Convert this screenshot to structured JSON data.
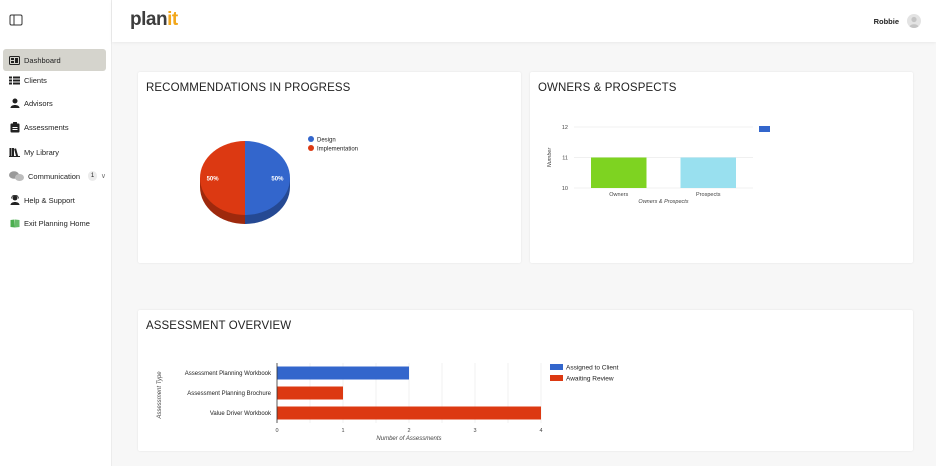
{
  "header": {
    "logo_main": "plan",
    "logo_accent": "it",
    "user_name": "Robbie"
  },
  "sidebar": {
    "items": [
      {
        "label": "Dashboard",
        "icon": "dashboard-icon",
        "active": true
      },
      {
        "label": "Clients",
        "icon": "clients-icon"
      },
      {
        "label": "Advisors",
        "icon": "advisors-icon"
      },
      {
        "label": "Assessments",
        "icon": "assessments-icon"
      },
      {
        "label": "My Library",
        "icon": "library-icon"
      },
      {
        "label": "Communication",
        "icon": "communication-icon",
        "badge": "1"
      },
      {
        "label": "Help & Support",
        "icon": "help-icon"
      },
      {
        "label": "Exit Planning Home",
        "icon": "exit-planning-icon"
      }
    ]
  },
  "cards": {
    "recommendations": {
      "title": "RECOMMENDATIONS IN PROGRESS"
    },
    "owners": {
      "title": "OWNERS & PROSPECTS"
    },
    "assessment": {
      "title": "ASSESSMENT OVERVIEW"
    }
  },
  "chart_data": [
    {
      "type": "pie",
      "title": "RECOMMENDATIONS IN PROGRESS",
      "labels": [
        "Design",
        "Implementation"
      ],
      "values": [
        50,
        50
      ],
      "slice_labels": [
        "50%",
        "50%"
      ],
      "colors": [
        "#3366cc",
        "#dc3912"
      ],
      "legend": "right"
    },
    {
      "type": "bar",
      "title": "OWNERS & PROSPECTS",
      "categories": [
        "Owners",
        "Prospects"
      ],
      "values": [
        11,
        11
      ],
      "colors": [
        "#7ed321",
        "#99e0ef"
      ],
      "xlabel": "Owners & Prospects",
      "ylabel": "Number",
      "ylim": [
        10,
        12
      ],
      "yticks": [
        "10",
        "11",
        "12"
      ],
      "legend_color": "#3366cc",
      "grid": true
    },
    {
      "type": "bar",
      "orientation": "horizontal",
      "title": "ASSESSMENT OVERVIEW",
      "categories": [
        "Assessment Planning Workbook",
        "Assessment Planning Brochure",
        "Value Driver Workbook"
      ],
      "series": [
        {
          "name": "Assigned to Client",
          "color": "#3366cc"
        },
        {
          "name": "Awaiting Review",
          "color": "#dc3912"
        }
      ],
      "bars": [
        {
          "category": "Assessment Planning Workbook",
          "series": "Assigned to Client",
          "value": 2
        },
        {
          "category": "Assessment Planning Brochure",
          "series": "Awaiting Review",
          "value": 1
        },
        {
          "category": "Value Driver Workbook",
          "series": "Awaiting Review",
          "value": 4
        }
      ],
      "xlabel": "Number of Assessments",
      "ylabel": "Assessment Type",
      "xlim": [
        0,
        4
      ],
      "xticks": [
        "0",
        "1",
        "2",
        "3",
        "4"
      ],
      "legend": "right",
      "grid": true
    }
  ]
}
